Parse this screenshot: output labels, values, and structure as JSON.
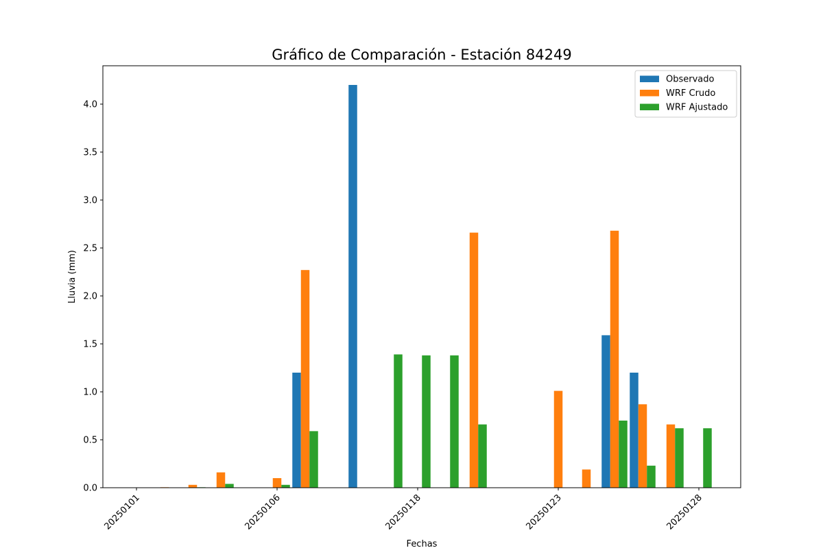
{
  "chart_data": {
    "type": "bar",
    "title": "Gráfico de Comparación - Estación 84249",
    "xlabel": "Fechas",
    "ylabel": "Lluvia (mm)",
    "ylim": [
      0,
      4.4
    ],
    "yticks": [
      "0.0",
      "0.5",
      "1.0",
      "1.5",
      "2.0",
      "2.5",
      "3.0",
      "3.5",
      "4.0"
    ],
    "x_tick_labels": [
      {
        "index": 0,
        "label": "20250101"
      },
      {
        "index": 5,
        "label": "20250106"
      },
      {
        "index": 10,
        "label": "20250118"
      },
      {
        "index": 15,
        "label": "20250123"
      },
      {
        "index": 20,
        "label": "20250128"
      }
    ],
    "category_count": 21,
    "legend_position": "upper-right",
    "grid": false,
    "series": [
      {
        "name": "Observado",
        "color": "#1f77b4",
        "values": [
          0,
          0,
          0,
          0,
          0,
          0,
          1.2,
          0,
          4.2,
          0,
          0,
          0,
          0,
          0,
          0,
          0,
          0,
          1.59,
          1.2,
          0,
          0
        ]
      },
      {
        "name": "WRF Crudo",
        "color": "#ff7f0e",
        "values": [
          0,
          0.005,
          0.03,
          0.16,
          0,
          0.1,
          2.27,
          0,
          0,
          0,
          0,
          0,
          2.66,
          0,
          0,
          1.01,
          0.19,
          2.68,
          0.87,
          0.66,
          0
        ]
      },
      {
        "name": "WRF Ajustado",
        "color": "#2ca02c",
        "values": [
          0,
          0,
          0.005,
          0.04,
          0,
          0.03,
          0.59,
          0,
          0,
          1.39,
          1.38,
          1.38,
          0.66,
          0,
          0,
          0,
          0,
          0.7,
          0.23,
          0.62,
          0.62
        ]
      }
    ]
  }
}
